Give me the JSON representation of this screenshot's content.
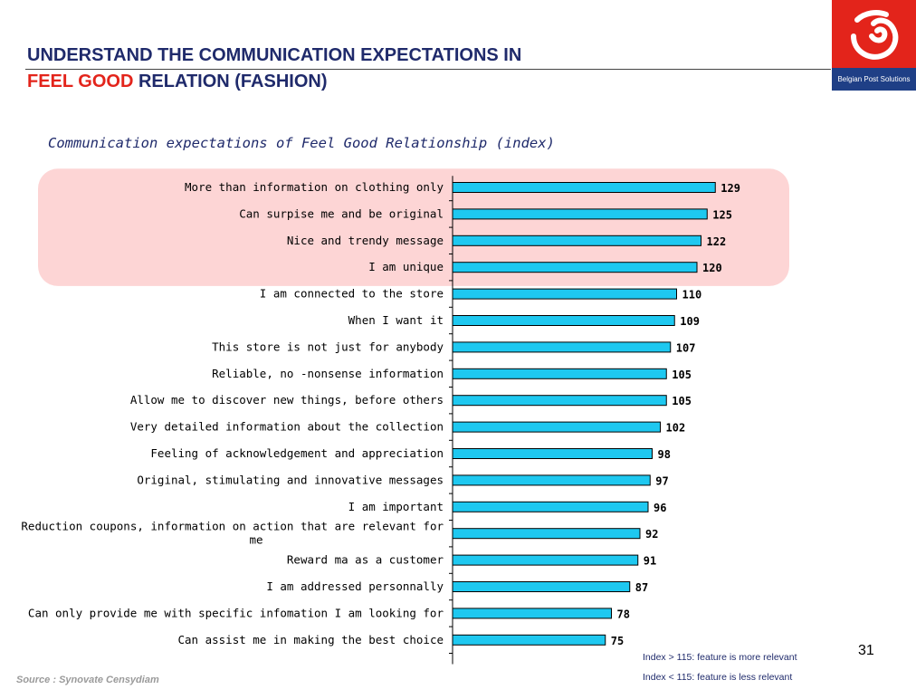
{
  "header": {
    "title_line1": "UNDERSTAND THE COMMUNICATION EXPECTATIONS IN",
    "title_line2_highlight": "FEEL GOOD",
    "title_line2_rest": "RELATION (FASHION)",
    "logo_text": "Belgian Post Solutions"
  },
  "subtitle": "Communication expectations of Feel Good Relationship (index)",
  "colors": {
    "bar_fill": "#1ec8f0",
    "bar_stroke": "#000000",
    "highlight_fill": "#fdd5d5",
    "title": "#1f2a6b",
    "accent": "#e3241b"
  },
  "chart_data": {
    "type": "bar",
    "orientation": "horizontal",
    "categories": [
      "More than information on clothing only",
      "Can surpise me and be original",
      "Nice and trendy message",
      "I am unique",
      "I am connected to the store",
      "When I want it",
      "This store is not just for anybody",
      "Reliable, no -nonsense information",
      "Allow me to discover new things, before others",
      "Very detailed information about the collection",
      "Feeling of acknowledgement and appreciation",
      "Original, stimulating and innovative messages",
      "I am important",
      "Reduction coupons, information on action that are relevant for me",
      "Reward ma as a customer",
      "I am addressed personnally",
      "Can only provide me with specific infomation I am looking for",
      "Can assist me in making the best choice"
    ],
    "label_lines": [
      [
        "More than information on clothing only"
      ],
      [
        "Can surpise me and be original"
      ],
      [
        "Nice and trendy message"
      ],
      [
        "I am unique"
      ],
      [
        "I am connected to the store"
      ],
      [
        "When I want it"
      ],
      [
        "This store is not just for anybody"
      ],
      [
        "Reliable, no -nonsense information"
      ],
      [
        "Allow me to discover new things, before others"
      ],
      [
        "Very detailed information about the collection"
      ],
      [
        "Feeling of acknowledgement and appreciation"
      ],
      [
        "Original, stimulating and innovative messages"
      ],
      [
        "I am important"
      ],
      [
        "Reduction coupons, information on action that are relevant for",
        "me"
      ],
      [
        "Reward ma as a customer"
      ],
      [
        "I am addressed personnally"
      ],
      [
        "Can only provide me with specific infomation I am looking for"
      ],
      [
        "Can assist me in making the best choice"
      ]
    ],
    "values": [
      129,
      125,
      122,
      120,
      110,
      109,
      107,
      105,
      105,
      102,
      98,
      97,
      96,
      92,
      91,
      87,
      78,
      75
    ],
    "highlight_above": 115,
    "grid": false,
    "legend": "none"
  },
  "notes": {
    "more_relevant": "Index > 115: feature is more relevant",
    "less_relevant": "Index < 115: feature is less relevant"
  },
  "source": "Source : Synovate Censydiam",
  "page_number": "31"
}
